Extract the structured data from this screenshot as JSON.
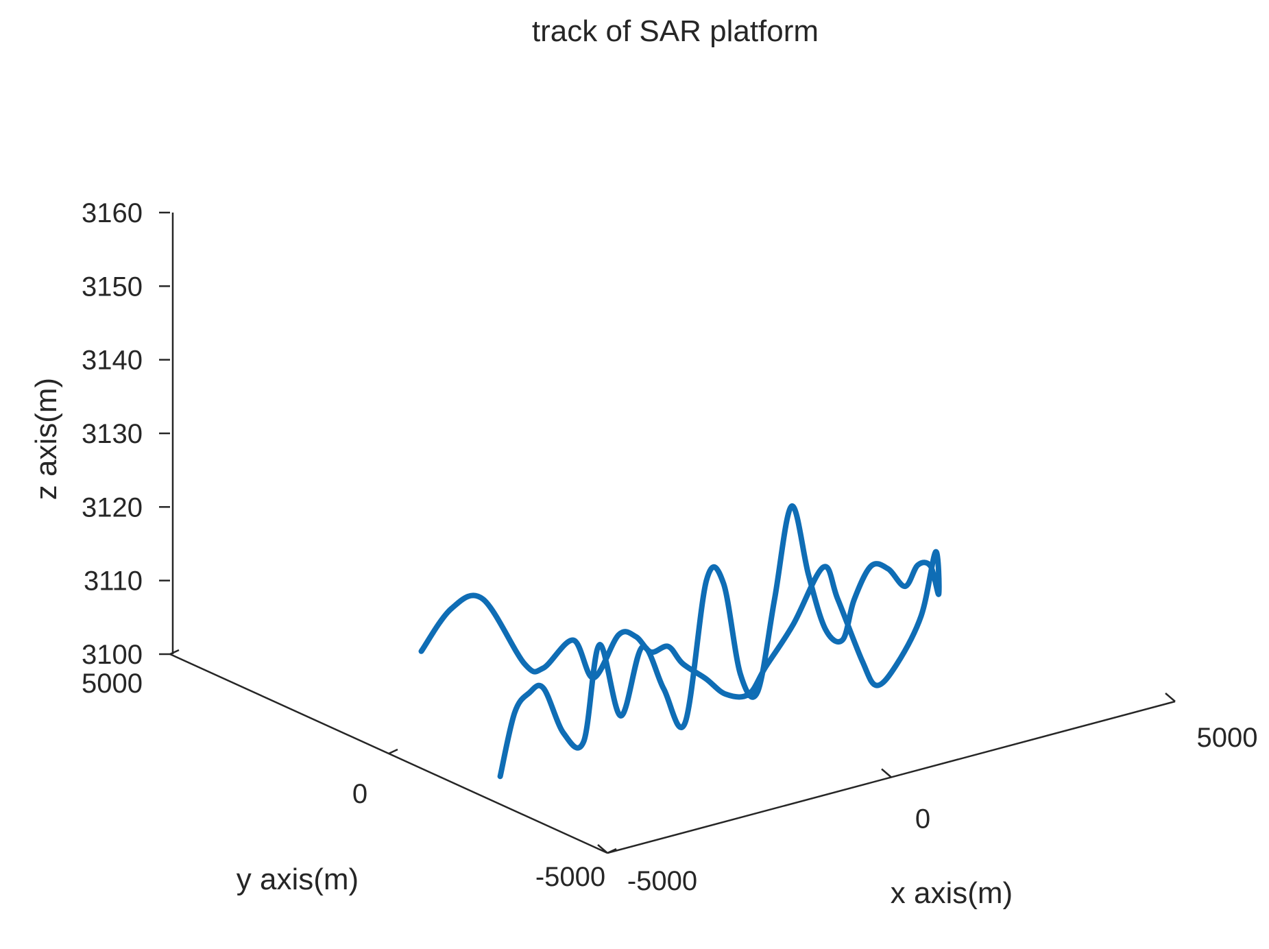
{
  "chart_data": {
    "type": "line",
    "projection": "3d",
    "title": "track of SAR platform",
    "xlabel": "x axis(m)",
    "ylabel": "y axis(m)",
    "zlabel": "z axis(m)",
    "xlim": [
      -5000,
      5000
    ],
    "ylim": [
      -5000,
      5000
    ],
    "zlim": [
      3100,
      3160
    ],
    "xticks": [
      "-5000",
      "0",
      "5000"
    ],
    "yticks": [
      "-5000",
      "0",
      "5000"
    ],
    "zticks": [
      "3100",
      "3110",
      "3120",
      "3130",
      "3140",
      "3150",
      "3160"
    ],
    "grid": false,
    "legend": false,
    "colors": {
      "series": "#0F6DB5",
      "axes": "#262626",
      "background": "#ffffff"
    },
    "series": [
      {
        "points_xyz": [
          [
            -2500,
            2500,
            3102
          ],
          [
            -2200,
            2200,
            3108
          ],
          [
            -1800,
            2000,
            3109
          ],
          [
            -1300,
            1700,
            3100
          ],
          [
            -1200,
            1400,
            3100
          ],
          [
            -900,
            1100,
            3104
          ],
          [
            -700,
            900,
            3099
          ],
          [
            -450,
            650,
            3105
          ],
          [
            -300,
            450,
            3105
          ],
          [
            -150,
            300,
            3103
          ],
          [
            0,
            100,
            3104
          ],
          [
            100,
            -100,
            3102
          ],
          [
            350,
            -300,
            3100
          ],
          [
            550,
            -500,
            3098
          ],
          [
            800,
            -700,
            3098
          ],
          [
            950,
            -900,
            3102
          ],
          [
            1200,
            -1200,
            3108
          ],
          [
            1500,
            -1500,
            3116
          ],
          [
            1600,
            -1700,
            3112
          ],
          [
            1800,
            -2000,
            3104
          ],
          [
            1900,
            -2200,
            3101
          ],
          [
            2100,
            -2400,
            3104
          ],
          [
            2300,
            -2700,
            3111
          ],
          [
            2400,
            -2900,
            3120
          ],
          [
            2300,
            -3100,
            3115
          ],
          [
            2000,
            -3300,
            3120
          ],
          [
            1700,
            -3400,
            3121
          ],
          [
            1400,
            -3500,
            3119
          ],
          [
            1100,
            -3500,
            3122
          ],
          [
            800,
            -3500,
            3123
          ],
          [
            500,
            -3500,
            3119
          ],
          [
            300,
            -3500,
            3114
          ],
          [
            0,
            -3500,
            3116
          ],
          [
            -300,
            -3500,
            3124
          ],
          [
            -600,
            -3500,
            3134
          ],
          [
            -900,
            -3500,
            3122
          ],
          [
            -1200,
            -3500,
            3110
          ],
          [
            -1500,
            -3500,
            3113
          ],
          [
            -1800,
            -3500,
            3126
          ],
          [
            -2100,
            -3500,
            3127
          ],
          [
            -2400,
            -3400,
            3108
          ],
          [
            -2700,
            -3300,
            3113
          ],
          [
            -3000,
            -3200,
            3119
          ],
          [
            -3300,
            -3100,
            3110
          ],
          [
            -3600,
            -3000,
            3120
          ],
          [
            -3800,
            -2900,
            3107
          ],
          [
            -4000,
            -2700,
            3108
          ],
          [
            -4200,
            -2500,
            3114
          ],
          [
            -4300,
            -2300,
            3113
          ],
          [
            -4400,
            -2100,
            3110
          ],
          [
            -4500,
            -1900,
            3101
          ]
        ]
      }
    ]
  }
}
